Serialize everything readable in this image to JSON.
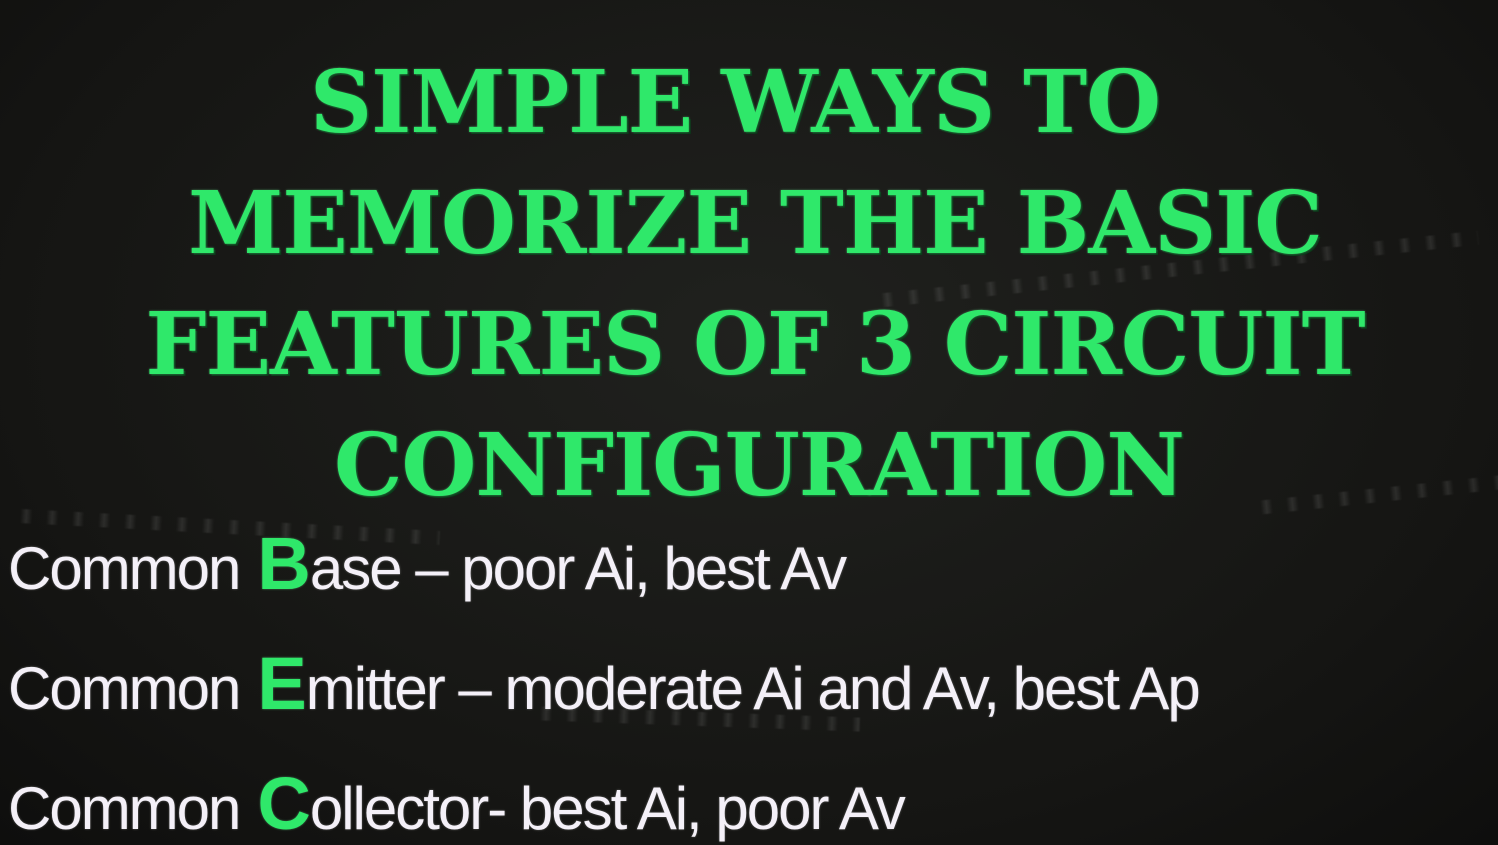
{
  "title_lines": [
    "SIMPLE WAYS TO",
    "MEMORIZE THE BASIC",
    "FEATURES OF  3 CIRCUIT",
    "CONFIGURATION"
  ],
  "items": [
    {
      "prefix": "Common",
      "initial": "B",
      "rest": "ase – poor Ai, best Av"
    },
    {
      "prefix": "Common",
      "initial": "E",
      "rest": "mitter – moderate Ai and Av, best Ap"
    },
    {
      "prefix": "Common",
      "initial": "C",
      "rest": "ollector- best Ai, poor Av"
    }
  ],
  "colors": {
    "background": "#1a1a18",
    "title": "#2fe86a",
    "highlight_initial": "#2fe86a",
    "body_text": "#f4f0f8"
  }
}
